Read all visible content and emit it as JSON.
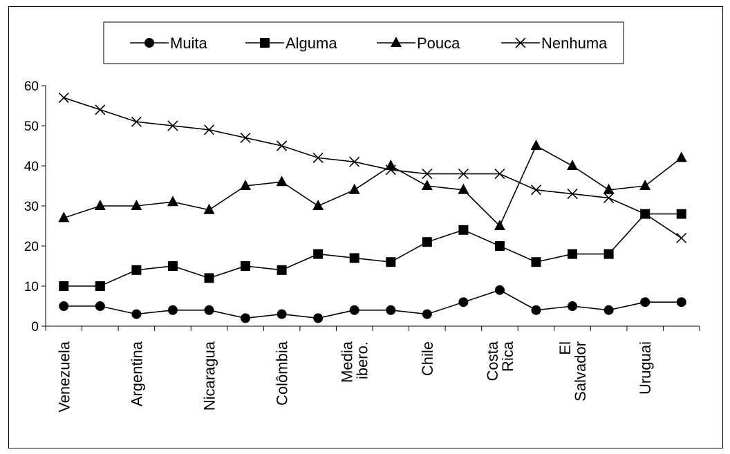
{
  "chart_data": {
    "type": "line",
    "title": "",
    "xlabel": "",
    "ylabel": "",
    "ylim": [
      0,
      60
    ],
    "yticks": [
      0,
      10,
      20,
      30,
      40,
      50,
      60
    ],
    "grid": false,
    "legend_position": "top",
    "category_count": 18,
    "category_labels": [
      {
        "index": 0,
        "lines": [
          "Venezuela"
        ]
      },
      {
        "index": 2,
        "lines": [
          "Argentina"
        ]
      },
      {
        "index": 4,
        "lines": [
          "Nicaragua"
        ]
      },
      {
        "index": 6,
        "lines": [
          "Colômbia"
        ]
      },
      {
        "index": 8,
        "lines": [
          "Media",
          "ibero."
        ]
      },
      {
        "index": 10,
        "lines": [
          "Chile"
        ]
      },
      {
        "index": 12,
        "lines": [
          "Costa",
          "Rica"
        ]
      },
      {
        "index": 14,
        "lines": [
          "El",
          "Salvador"
        ]
      },
      {
        "index": 16,
        "lines": [
          "Uruguai"
        ]
      }
    ],
    "series": [
      {
        "name": "Muita",
        "marker": "circle",
        "values": [
          5,
          5,
          3,
          4,
          4,
          2,
          3,
          2,
          4,
          4,
          3,
          6,
          9,
          4,
          5,
          4,
          6,
          6
        ]
      },
      {
        "name": "Alguma",
        "marker": "square",
        "values": [
          10,
          10,
          14,
          15,
          12,
          15,
          14,
          18,
          17,
          16,
          21,
          24,
          20,
          16,
          18,
          18,
          28,
          28
        ]
      },
      {
        "name": "Pouca",
        "marker": "triangle",
        "values": [
          27,
          30,
          30,
          31,
          29,
          35,
          36,
          30,
          34,
          40,
          35,
          34,
          25,
          45,
          40,
          34,
          35,
          42
        ]
      },
      {
        "name": "Nenhuma",
        "marker": "x",
        "values": [
          57,
          54,
          51,
          50,
          49,
          47,
          45,
          42,
          41,
          39,
          38,
          38,
          38,
          34,
          33,
          32,
          28,
          22
        ]
      }
    ]
  }
}
